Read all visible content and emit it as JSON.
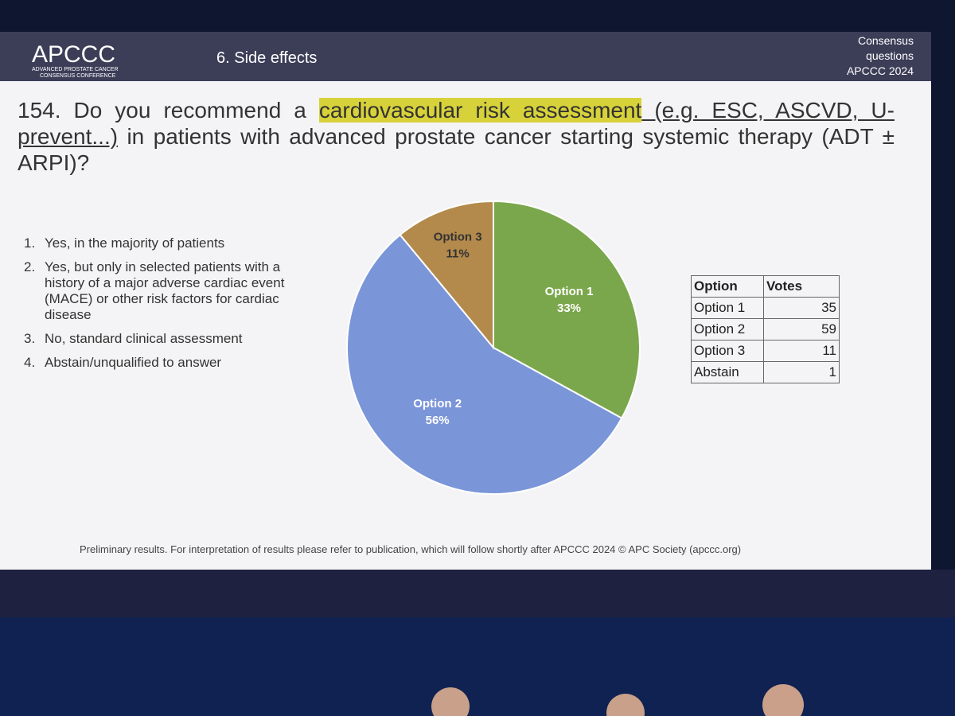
{
  "header": {
    "logo": "APCCC",
    "logo_sub_1": "ADVANCED PROSTATE CANCER",
    "logo_sub_2": "CONSENSUS CONFERENCE",
    "section": "6. Side effects",
    "right_lines": [
      "Consensus",
      "questions",
      "APCCC 2024"
    ]
  },
  "question": {
    "start": "154. Do you recommend a ",
    "highlight": "cardiovascular risk assessment",
    "underlined": " (e.g. ESC, ASCVD, U-prevent...)",
    "end": " in patients with advanced prostate cancer starting systemic therapy (ADT ± ARPI)?"
  },
  "options": [
    {
      "number": "1.",
      "text": "Yes, in the majority of patients"
    },
    {
      "number": "2.",
      "text": "Yes, but only in selected patients with a history of a major adverse cardiac event (MACE) or other risk factors for cardiac disease"
    },
    {
      "number": "3.",
      "text": "No, standard clinical assessment"
    },
    {
      "number": "4.",
      "text": "Abstain/unqualified to answer"
    }
  ],
  "chart_data": {
    "type": "pie",
    "categories": [
      "Option 1",
      "Option 2",
      "Option 3"
    ],
    "values": [
      33,
      56,
      11
    ],
    "value_labels": [
      "33%",
      "56%",
      "11%"
    ],
    "colors": [
      "#7ba74c",
      "#7b95d9",
      "#b38a4c"
    ]
  },
  "table": {
    "header": [
      "Option",
      "Votes"
    ],
    "rows": [
      [
        "Option 1",
        35
      ],
      [
        "Option 2",
        59
      ],
      [
        "Option 3",
        11
      ],
      [
        "Abstain",
        1
      ]
    ]
  },
  "footer": "Preliminary results. For interpretation of results please refer to publication, which will follow shortly after APCCC 2024 © APC Society (apccc.org)"
}
